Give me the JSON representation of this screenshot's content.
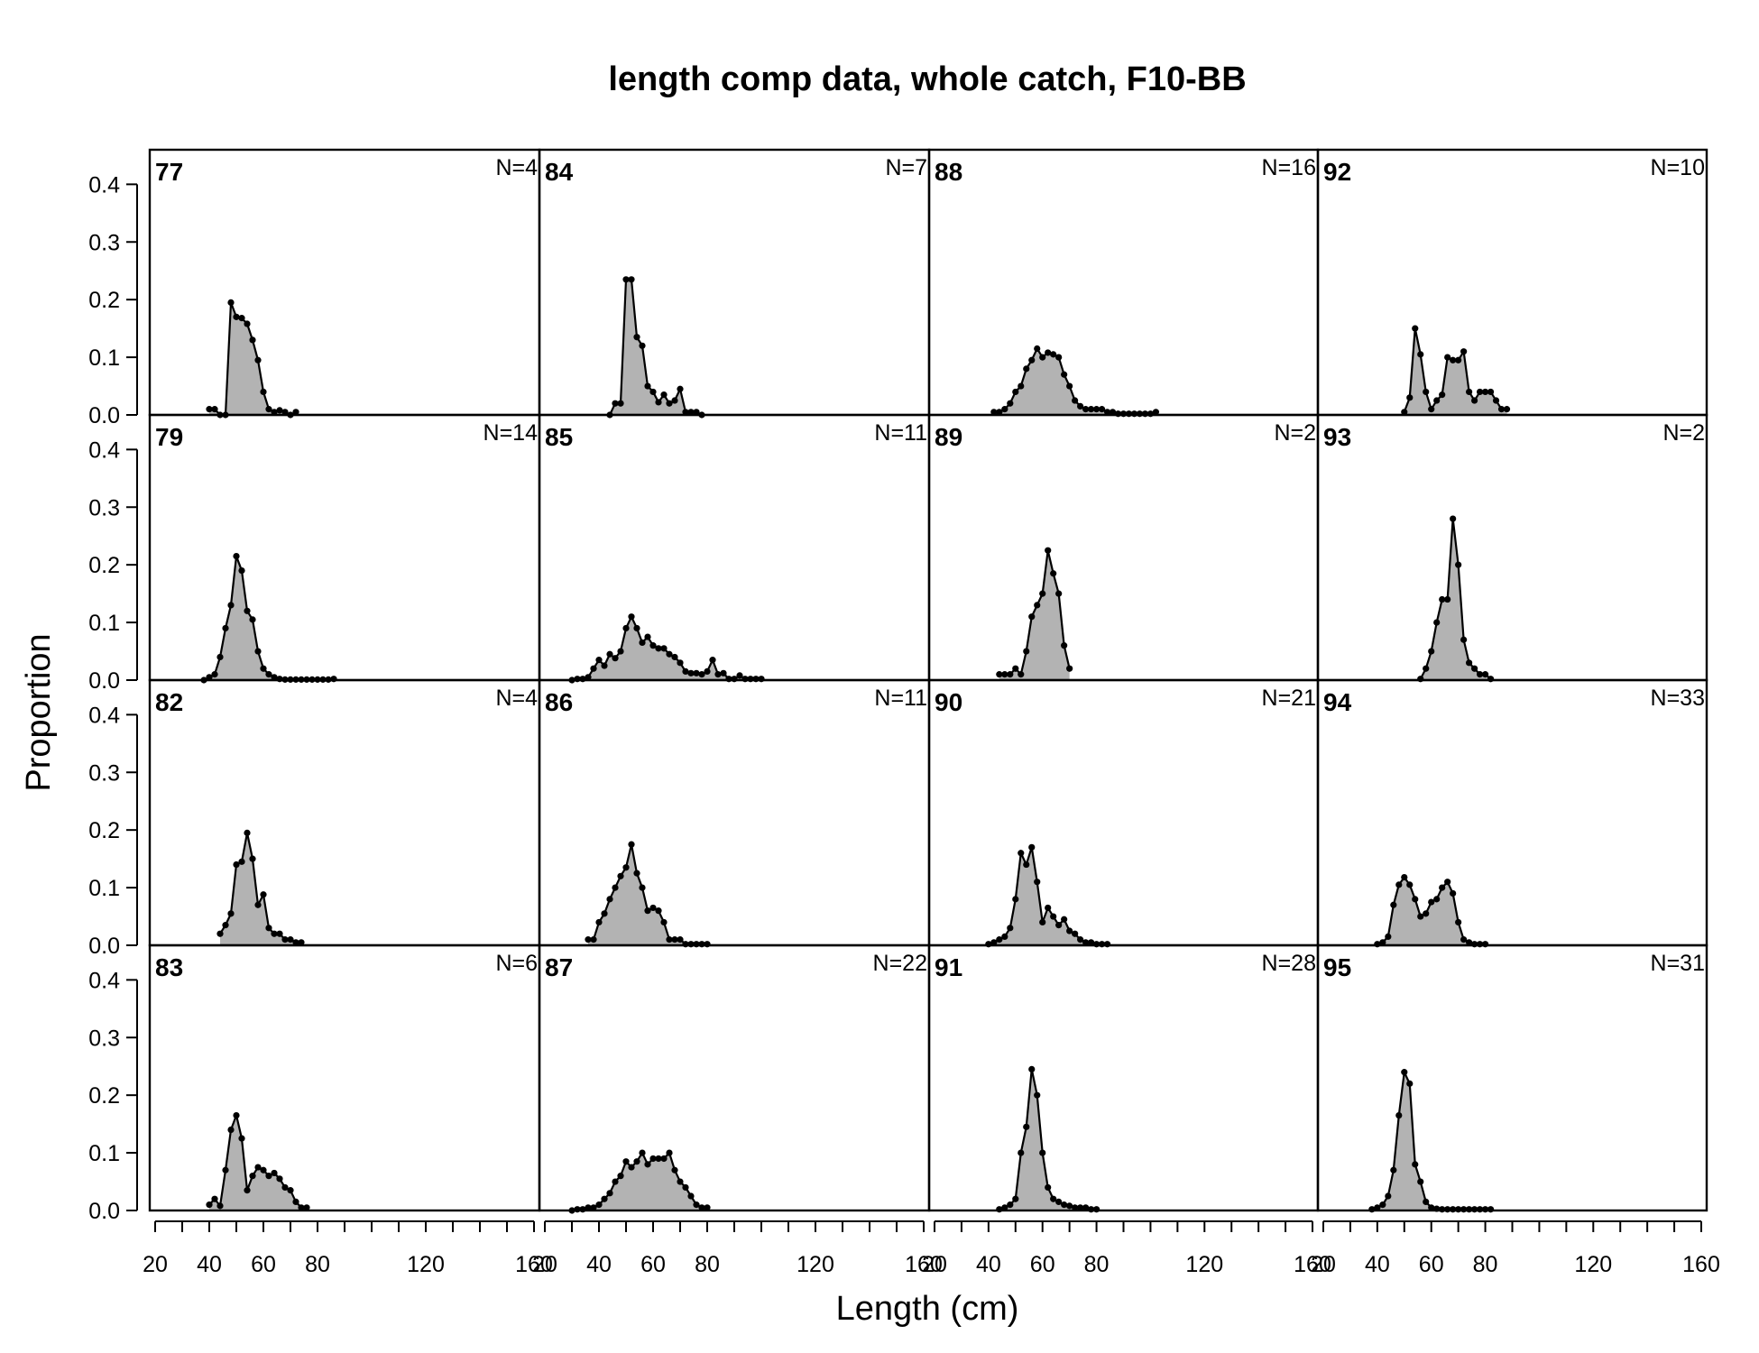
{
  "chart_data": {
    "type": "area",
    "title": "length comp data, whole catch, F10-BB",
    "xlabel": "Length (cm)",
    "ylabel": "Proportion",
    "xlim": [
      18,
      162
    ],
    "ylim": [
      0,
      0.46
    ],
    "x_ticks": [
      20,
      30,
      40,
      50,
      60,
      70,
      80,
      90,
      100,
      110,
      120,
      130,
      140,
      150,
      160
    ],
    "x_tick_labels": [
      "20",
      "40",
      "60",
      "80",
      "120",
      "160"
    ],
    "y_ticks": [
      0.0,
      0.1,
      0.2,
      0.3,
      0.4
    ],
    "y_tick_labels": [
      "0.0",
      "0.1",
      "0.2",
      "0.3",
      "0.4"
    ],
    "grid": false,
    "fill_color": "#b3b3b3",
    "line_color": "#000000",
    "layout": "4 columns x 4 rows, columns fill top-to-bottom",
    "panels": [
      {
        "year": "77",
        "n_label": "N=4",
        "x": [
          40,
          42,
          44,
          46,
          48,
          50,
          52,
          54,
          56,
          58,
          60,
          62,
          64,
          66,
          68,
          70,
          72
        ],
        "y": [
          0.01,
          0.01,
          0.0,
          0.0,
          0.195,
          0.17,
          0.168,
          0.158,
          0.13,
          0.095,
          0.04,
          0.01,
          0.005,
          0.008,
          0.005,
          0,
          0.005
        ]
      },
      {
        "year": "79",
        "n_label": "N=14",
        "x": [
          38,
          40,
          42,
          44,
          46,
          48,
          50,
          52,
          54,
          56,
          58,
          60,
          62,
          64,
          66,
          68,
          70,
          72,
          74,
          76,
          78,
          80,
          82,
          84,
          86
        ],
        "y": [
          0.0,
          0.005,
          0.01,
          0.04,
          0.09,
          0.13,
          0.215,
          0.19,
          0.12,
          0.105,
          0.05,
          0.02,
          0.01,
          0.005,
          0.002,
          0.001,
          0.001,
          0.001,
          0.001,
          0.001,
          0.001,
          0.001,
          0.001,
          0.001,
          0.002
        ]
      },
      {
        "year": "82",
        "n_label": "N=4",
        "x": [
          44,
          46,
          48,
          50,
          52,
          54,
          56,
          58,
          60,
          62,
          64,
          66,
          68,
          70,
          72,
          74
        ],
        "y": [
          0.02,
          0.035,
          0.055,
          0.14,
          0.145,
          0.195,
          0.15,
          0.07,
          0.088,
          0.03,
          0.02,
          0.02,
          0.01,
          0.01,
          0.005,
          0.005
        ]
      },
      {
        "year": "83",
        "n_label": "N=6",
        "x": [
          40,
          42,
          44,
          46,
          48,
          50,
          52,
          54,
          56,
          58,
          60,
          62,
          64,
          66,
          68,
          70,
          72,
          74,
          76
        ],
        "y": [
          0.01,
          0.02,
          0.008,
          0.07,
          0.14,
          0.165,
          0.125,
          0.035,
          0.06,
          0.075,
          0.07,
          0.06,
          0.065,
          0.055,
          0.04,
          0.035,
          0.015,
          0.005,
          0.005
        ]
      },
      {
        "year": "84",
        "n_label": "N=7",
        "x": [
          44,
          46,
          48,
          50,
          52,
          54,
          56,
          58,
          60,
          62,
          64,
          66,
          68,
          70,
          72,
          74,
          76,
          78
        ],
        "y": [
          0.0,
          0.02,
          0.02,
          0.235,
          0.235,
          0.135,
          0.12,
          0.05,
          0.04,
          0.022,
          0.035,
          0.02,
          0.025,
          0.045,
          0.005,
          0.005,
          0.005,
          0.0
        ]
      },
      {
        "year": "85",
        "n_label": "N=11",
        "x": [
          30,
          32,
          34,
          36,
          38,
          40,
          42,
          44,
          46,
          48,
          50,
          52,
          54,
          56,
          58,
          60,
          62,
          64,
          66,
          68,
          70,
          72,
          74,
          76,
          78,
          80,
          82,
          84,
          86,
          88,
          90,
          92,
          94,
          96,
          98,
          100
        ],
        "y": [
          0.0,
          0.002,
          0.002,
          0.005,
          0.02,
          0.035,
          0.025,
          0.045,
          0.038,
          0.05,
          0.09,
          0.11,
          0.09,
          0.065,
          0.075,
          0.06,
          0.055,
          0.055,
          0.045,
          0.04,
          0.03,
          0.015,
          0.012,
          0.012,
          0.01,
          0.015,
          0.035,
          0.01,
          0.012,
          0.002,
          0.002,
          0.008,
          0.002,
          0.002,
          0.002,
          0.002
        ]
      },
      {
        "year": "86",
        "n_label": "N=11",
        "x": [
          36,
          38,
          40,
          42,
          44,
          46,
          48,
          50,
          52,
          54,
          56,
          58,
          60,
          62,
          64,
          66,
          68,
          70,
          72,
          74,
          76,
          78,
          80
        ],
        "y": [
          0.01,
          0.01,
          0.04,
          0.055,
          0.08,
          0.1,
          0.12,
          0.135,
          0.175,
          0.125,
          0.1,
          0.06,
          0.065,
          0.06,
          0.04,
          0.01,
          0.01,
          0.01,
          0.002,
          0.002,
          0.002,
          0.002,
          0.002
        ]
      },
      {
        "year": "87",
        "n_label": "N=22",
        "x": [
          30,
          32,
          34,
          36,
          38,
          40,
          42,
          44,
          46,
          48,
          50,
          52,
          54,
          56,
          58,
          60,
          62,
          64,
          66,
          68,
          70,
          72,
          74,
          76,
          78,
          80
        ],
        "y": [
          0.0,
          0.002,
          0.002,
          0.005,
          0.005,
          0.01,
          0.02,
          0.03,
          0.05,
          0.06,
          0.085,
          0.075,
          0.085,
          0.1,
          0.08,
          0.09,
          0.09,
          0.09,
          0.1,
          0.07,
          0.05,
          0.04,
          0.025,
          0.01,
          0.005,
          0.005
        ]
      },
      {
        "year": "88",
        "n_label": "N=16",
        "x": [
          42,
          44,
          46,
          48,
          50,
          52,
          54,
          56,
          58,
          60,
          62,
          64,
          66,
          68,
          70,
          72,
          74,
          76,
          78,
          80,
          82,
          84,
          86,
          88,
          90,
          92,
          94,
          96,
          98,
          100,
          102
        ],
        "y": [
          0.005,
          0.005,
          0.01,
          0.02,
          0.04,
          0.05,
          0.08,
          0.095,
          0.115,
          0.1,
          0.108,
          0.105,
          0.1,
          0.07,
          0.05,
          0.025,
          0.015,
          0.01,
          0.01,
          0.01,
          0.01,
          0.005,
          0.005,
          0.002,
          0.002,
          0.002,
          0.002,
          0.002,
          0.002,
          0.002,
          0.005
        ]
      },
      {
        "year": "89",
        "n_label": "N=2",
        "x": [
          44,
          46,
          48,
          50,
          52,
          54,
          56,
          58,
          60,
          62,
          64,
          66,
          68,
          70
        ],
        "y": [
          0.01,
          0.01,
          0.01,
          0.02,
          0.01,
          0.05,
          0.11,
          0.13,
          0.15,
          0.225,
          0.185,
          0.15,
          0.06,
          0.02
        ]
      },
      {
        "year": "90",
        "n_label": "N=21",
        "x": [
          40,
          42,
          44,
          46,
          48,
          50,
          52,
          54,
          56,
          58,
          60,
          62,
          64,
          66,
          68,
          70,
          72,
          74,
          76,
          78,
          80,
          82,
          84
        ],
        "y": [
          0.002,
          0.005,
          0.01,
          0.015,
          0.03,
          0.08,
          0.16,
          0.14,
          0.17,
          0.11,
          0.04,
          0.065,
          0.05,
          0.035,
          0.045,
          0.025,
          0.02,
          0.01,
          0.005,
          0.005,
          0.002,
          0.002,
          0.002
        ]
      },
      {
        "year": "91",
        "n_label": "N=28",
        "x": [
          44,
          46,
          48,
          50,
          52,
          54,
          56,
          58,
          60,
          62,
          64,
          66,
          68,
          70,
          72,
          74,
          76,
          78,
          80
        ],
        "y": [
          0.002,
          0.005,
          0.01,
          0.02,
          0.1,
          0.145,
          0.245,
          0.2,
          0.1,
          0.04,
          0.02,
          0.015,
          0.01,
          0.008,
          0.005,
          0.005,
          0.005,
          0.002,
          0.002
        ]
      },
      {
        "year": "92",
        "n_label": "N=10",
        "x": [
          50,
          52,
          54,
          56,
          58,
          60,
          62,
          64,
          66,
          68,
          70,
          72,
          74,
          76,
          78,
          80,
          82,
          84,
          86,
          88
        ],
        "y": [
          0.005,
          0.03,
          0.15,
          0.105,
          0.04,
          0.01,
          0.025,
          0.035,
          0.1,
          0.095,
          0.095,
          0.11,
          0.04,
          0.025,
          0.04,
          0.04,
          0.04,
          0.025,
          0.01,
          0.01
        ]
      },
      {
        "year": "93",
        "n_label": "N=2",
        "x": [
          56,
          58,
          60,
          62,
          64,
          66,
          68,
          70,
          72,
          74,
          76,
          78,
          80,
          82
        ],
        "y": [
          0.002,
          0.02,
          0.05,
          0.1,
          0.14,
          0.14,
          0.28,
          0.2,
          0.07,
          0.03,
          0.02,
          0.01,
          0.01,
          0.002
        ]
      },
      {
        "year": "94",
        "n_label": "N=33",
        "x": [
          40,
          42,
          44,
          46,
          48,
          50,
          52,
          54,
          56,
          58,
          60,
          62,
          64,
          66,
          68,
          70,
          72,
          74,
          76,
          78,
          80
        ],
        "y": [
          0.002,
          0.005,
          0.015,
          0.07,
          0.105,
          0.118,
          0.105,
          0.08,
          0.05,
          0.055,
          0.075,
          0.08,
          0.1,
          0.11,
          0.09,
          0.04,
          0.01,
          0.005,
          0.002,
          0.002,
          0.002
        ]
      },
      {
        "year": "95",
        "n_label": "N=31",
        "x": [
          38,
          40,
          42,
          44,
          46,
          48,
          50,
          52,
          54,
          56,
          58,
          60,
          62,
          64,
          66,
          68,
          70,
          72,
          74,
          76,
          78,
          80,
          82
        ],
        "y": [
          0.002,
          0.005,
          0.01,
          0.025,
          0.07,
          0.165,
          0.24,
          0.22,
          0.08,
          0.05,
          0.015,
          0.005,
          0.003,
          0.002,
          0.002,
          0.002,
          0.002,
          0.002,
          0.002,
          0.002,
          0.002,
          0.002,
          0.002
        ]
      }
    ]
  }
}
